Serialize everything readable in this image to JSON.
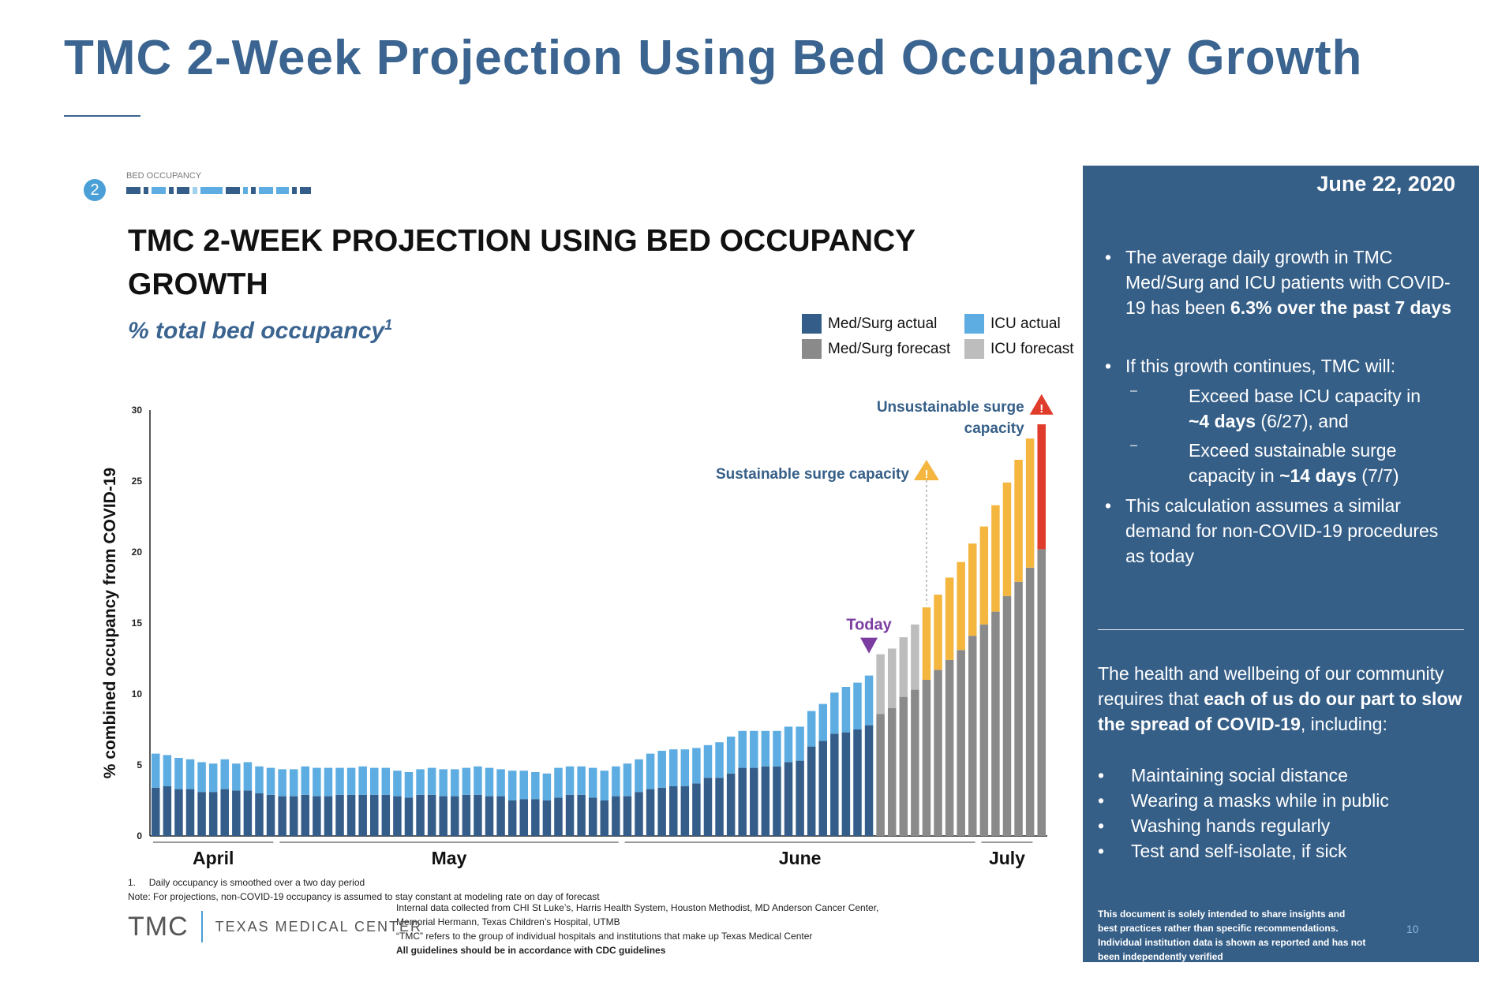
{
  "page_title": "TMC 2-Week Projection Using Bed Occupancy Growth",
  "step_number": "2",
  "section_label": "BED OCCUPANCY",
  "chart_heading": "TMC 2-WEEK PROJECTION USING BED OCCUPANCY GROWTH",
  "subtitle": "% total bed occupancy",
  "subtitle_sup": "1",
  "colors": {
    "medsurg_actual": "#345d8a",
    "icu_actual": "#5dade2",
    "medsurg_forecast": "#8a8a8a",
    "icu_forecast": "#bdbdbd",
    "icu_forecast_sustainable": "#f4b63f",
    "icu_forecast_unsustainable": "#e03c2c",
    "accent": "#365f88",
    "today": "#7b3ea0"
  },
  "legend": [
    "Med/Surg actual",
    "ICU actual",
    "Med/Surg forecast",
    "ICU forecast"
  ],
  "chart_data": {
    "type": "bar",
    "stacked": true,
    "ylabel": "% combined occupancy from COVID-19",
    "ylim": [
      0,
      30
    ],
    "yticks": [
      0,
      5,
      10,
      15,
      20,
      25,
      30
    ],
    "month_labels": [
      "April",
      "May",
      "June",
      "July"
    ],
    "month_ranges": [
      [
        0,
        10
      ],
      [
        11,
        40
      ],
      [
        41,
        71
      ],
      [
        72,
        76
      ]
    ],
    "medsurg": [
      3.4,
      3.5,
      3.3,
      3.3,
      3.1,
      3.1,
      3.3,
      3.2,
      3.2,
      3.0,
      2.9,
      2.8,
      2.8,
      2.9,
      2.8,
      2.8,
      2.9,
      2.9,
      2.9,
      2.9,
      2.9,
      2.8,
      2.7,
      2.9,
      2.9,
      2.8,
      2.8,
      2.9,
      2.9,
      2.8,
      2.8,
      2.5,
      2.6,
      2.6,
      2.5,
      2.7,
      2.9,
      2.9,
      2.7,
      2.5,
      2.8,
      2.8,
      3.1,
      3.3,
      3.4,
      3.5,
      3.5,
      3.7,
      4.1,
      4.1,
      4.4,
      4.8,
      4.8,
      4.9,
      4.9,
      5.2,
      5.3,
      6.3,
      6.7,
      7.2,
      7.3,
      7.5,
      7.8,
      8.6,
      9.0,
      9.8,
      10.3,
      11.0,
      11.7,
      12.4,
      13.1,
      14.1,
      14.9,
      15.8,
      16.9,
      17.9,
      18.9,
      20.2
    ],
    "icu": [
      2.4,
      2.2,
      2.2,
      2.1,
      2.1,
      2.0,
      2.1,
      1.9,
      2.0,
      1.9,
      1.9,
      1.9,
      1.9,
      2.0,
      2.0,
      2.0,
      1.9,
      1.9,
      2.0,
      1.9,
      1.9,
      1.8,
      1.8,
      1.8,
      1.9,
      1.9,
      1.9,
      1.9,
      2.0,
      2.0,
      1.9,
      2.1,
      2.0,
      1.9,
      1.9,
      2.1,
      2.0,
      2.0,
      2.1,
      2.1,
      2.1,
      2.3,
      2.3,
      2.5,
      2.6,
      2.6,
      2.6,
      2.5,
      2.3,
      2.5,
      2.6,
      2.6,
      2.6,
      2.5,
      2.5,
      2.5,
      2.4,
      2.5,
      2.6,
      2.9,
      3.2,
      3.3,
      3.5,
      4.2,
      4.2,
      4.2,
      4.6,
      5.1,
      5.3,
      5.8,
      6.2,
      6.5,
      6.9,
      7.5,
      8.0,
      8.6,
      9.1,
      8.8
    ],
    "actual_count": 63,
    "sustainable_start_index": 67,
    "unsustainable_index": 77,
    "annotations": {
      "today": "Today",
      "sustainable": "Sustainable surge capacity",
      "unsustainable_line1": "Unsustainable surge",
      "unsustainable_line2": "capacity"
    }
  },
  "footnotes": {
    "note1_number": "1.",
    "note1": "Daily occupancy is smoothed over a two day period",
    "note2": "Note: For projections, non-COVID-19 occupancy is assumed to stay constant at modeling rate on day of forecast",
    "source1": "Internal data collected from CHI St Luke’s, Harris Health System, Houston Methodist, MD Anderson Cancer Center,",
    "source2": "Memorial Hermann, Texas Children’s Hospital, UTMB",
    "source3": "“TMC” refers to the group of individual hospitals and institutions that make up Texas Medical Center",
    "source4": "All guidelines should be in accordance with CDC guidelines"
  },
  "logo": {
    "big": "TMC",
    "small": "TEXAS MEDICAL CENTER"
  },
  "panel": {
    "date": "June 22, 2020",
    "b1_pre": "The average daily growth in TMC Med/Surg and ICU patients with COVID-19 has been ",
    "b1_bold": "6.3% over the past 7 days",
    "b2": "If this growth continues, TMC will:",
    "s1_pre": "Exceed base ICU capacity in ",
    "s1_bold": "~4 days",
    "s1_post": " (6/27), and",
    "s2_pre": "Exceed sustainable surge capacity in ",
    "s2_bold": "~14 days",
    "s2_post": " (7/7)",
    "b3": "This calculation assumes a similar demand for non-COVID-19 procedures as today",
    "health_pre": "The health and wellbeing of our community requires that ",
    "health_bold": "each of us do our part to slow the spread of COVID-19",
    "health_post": ", including:",
    "health_items": [
      "Maintaining social distance",
      "Wearing a masks while in public",
      "Washing hands regularly",
      "Test and self-isolate, if sick"
    ],
    "disclaimer": "This document is solely intended to share insights and best practices rather than specific recommendations. Individual institution data is shown as reported and has not been independently verified",
    "page_number": "10"
  }
}
